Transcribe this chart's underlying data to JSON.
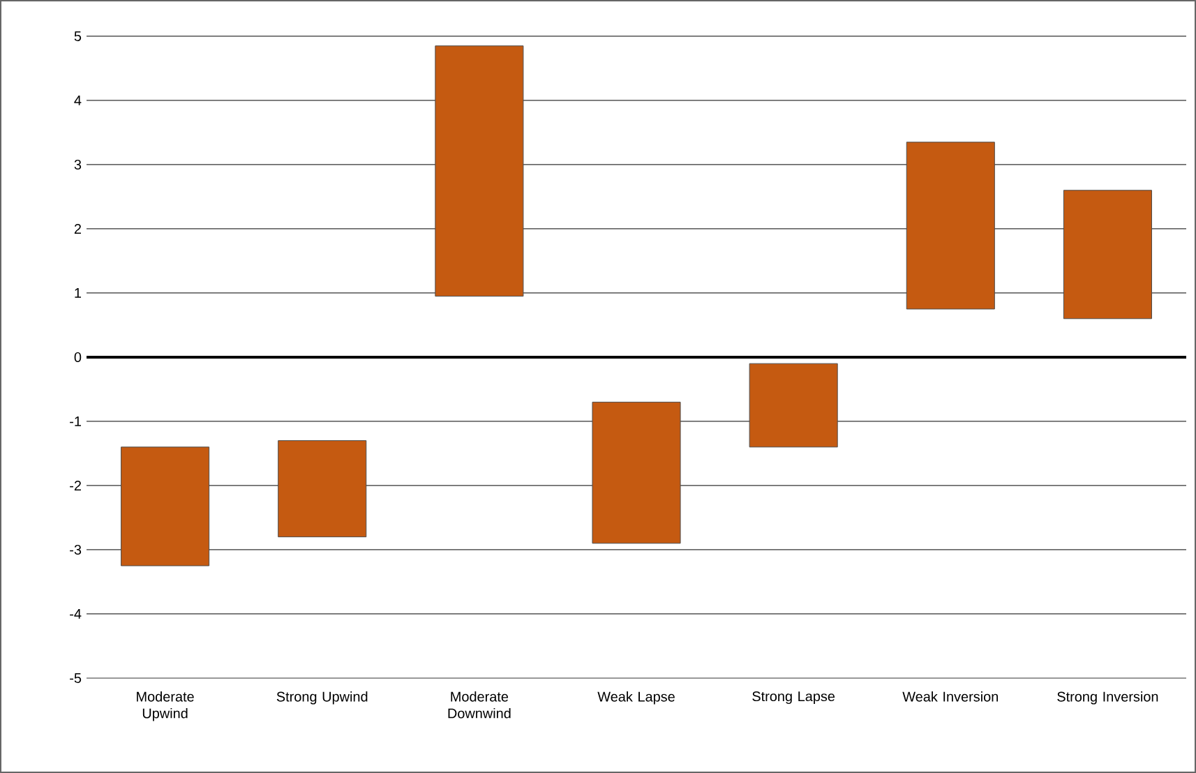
{
  "chart_data": {
    "type": "bar",
    "categories": [
      "Moderate Upwind",
      "Strong Upwind",
      "Moderate Downwind",
      "Weak Lapse",
      "Strong Lapse",
      "Weak Inversion",
      "Strong Inversion"
    ],
    "base": [
      -3.25,
      -2.8,
      0.95,
      -2.9,
      -1.4,
      0.75,
      0.6
    ],
    "values": [
      1.85,
      1.5,
      3.9,
      2.2,
      1.3,
      2.6,
      2.0
    ],
    "color": "#c55a11",
    "ylim": [
      -5,
      5
    ],
    "yticks": [
      -5,
      -4,
      -3,
      -2,
      -1,
      0,
      1,
      2,
      3,
      4,
      5
    ],
    "grid": "y"
  }
}
